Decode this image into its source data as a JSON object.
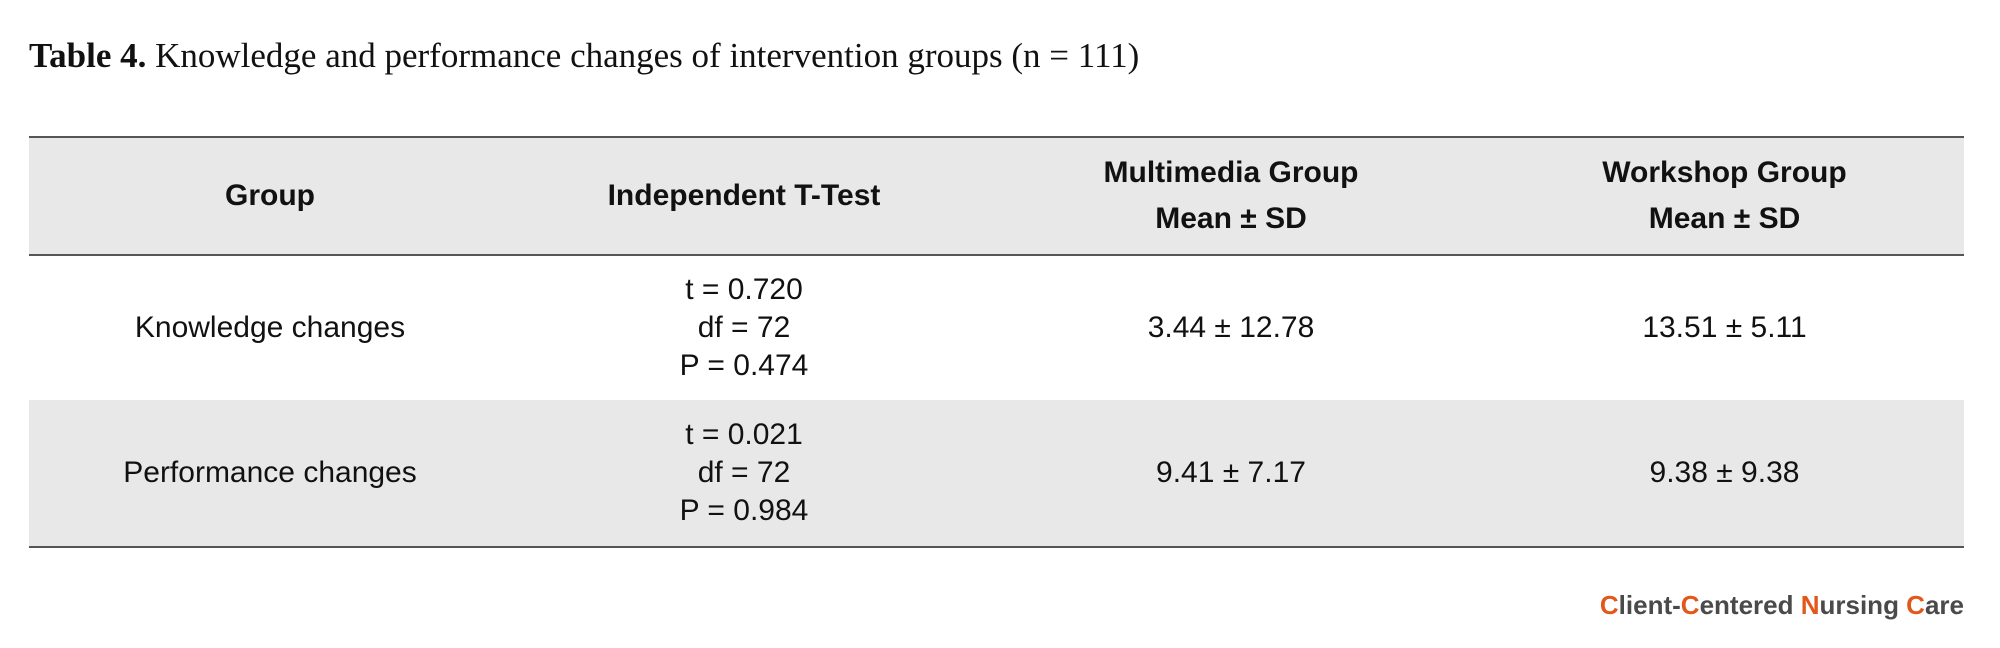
{
  "caption": {
    "label": "Table 4.",
    "title": "Knowledge and performance changes of intervention groups (n = 111)"
  },
  "table": {
    "headers": [
      {
        "line1": "Group",
        "line2": ""
      },
      {
        "line1": "Independent T-Test",
        "line2": ""
      },
      {
        "line1": "Multimedia Group",
        "line2": "Mean ± SD"
      },
      {
        "line1": "Workshop Group",
        "line2": "Mean ± SD"
      }
    ],
    "rows": [
      {
        "group": "Knowledge changes",
        "test": [
          "t = 0.720",
          "df = 72",
          "P = 0.474"
        ],
        "multimedia": "3.44 ± 12.78",
        "workshop": "13.51 ± 5.11"
      },
      {
        "group": "Performance changes",
        "test": [
          "t = 0.021",
          "df = 72",
          "P = 0.984"
        ],
        "multimedia": "9.41 ± 7.17",
        "workshop": "9.38 ± 9.38"
      }
    ]
  },
  "brand": {
    "parts": [
      {
        "text": "C",
        "color": "#e2571a"
      },
      {
        "text": "lient-",
        "color": "#4a4a4a"
      },
      {
        "text": "C",
        "color": "#e2571a"
      },
      {
        "text": "entered ",
        "color": "#4a4a4a"
      },
      {
        "text": "N",
        "color": "#e2571a"
      },
      {
        "text": "ursing ",
        "color": "#4a4a4a"
      },
      {
        "text": "C",
        "color": "#e2571a"
      },
      {
        "text": "are",
        "color": "#4a4a4a"
      }
    ]
  }
}
